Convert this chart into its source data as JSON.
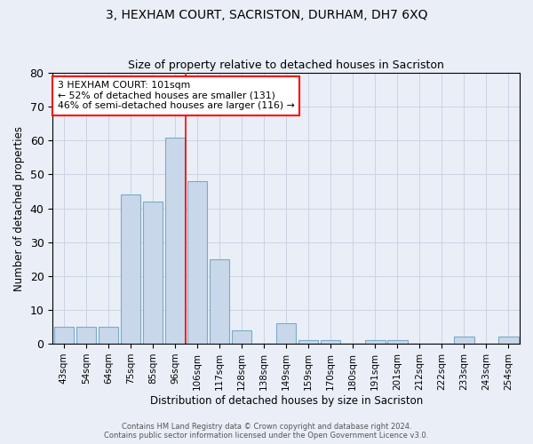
{
  "title": "3, HEXHAM COURT, SACRISTON, DURHAM, DH7 6XQ",
  "subtitle": "Size of property relative to detached houses in Sacriston",
  "xlabel": "Distribution of detached houses by size in Sacriston",
  "ylabel": "Number of detached properties",
  "bin_labels": [
    "43sqm",
    "54sqm",
    "64sqm",
    "75sqm",
    "85sqm",
    "96sqm",
    "106sqm",
    "117sqm",
    "128sqm",
    "138sqm",
    "149sqm",
    "159sqm",
    "170sqm",
    "180sqm",
    "191sqm",
    "201sqm",
    "212sqm",
    "222sqm",
    "233sqm",
    "243sqm",
    "254sqm"
  ],
  "bin_values": [
    5,
    5,
    5,
    44,
    42,
    61,
    48,
    25,
    4,
    0,
    6,
    1,
    1,
    0,
    1,
    1,
    0,
    0,
    2,
    0,
    2
  ],
  "bar_color": "#c8d8ea",
  "bar_edge_color": "#7aaac8",
  "vline_index": 5.5,
  "vline_color": "red",
  "annotation_text": "3 HEXHAM COURT: 101sqm\n← 52% of detached houses are smaller (131)\n46% of semi-detached houses are larger (116) →",
  "annotation_box_color": "white",
  "annotation_box_edge_color": "red",
  "ylim": [
    0,
    80
  ],
  "yticks": [
    0,
    10,
    20,
    30,
    40,
    50,
    60,
    70,
    80
  ],
  "grid_color": "#c8d4e4",
  "bg_color": "#eaeff7",
  "footer_line1": "Contains HM Land Registry data © Crown copyright and database right 2024.",
  "footer_line2": "Contains public sector information licensed under the Open Government Licence v3.0."
}
